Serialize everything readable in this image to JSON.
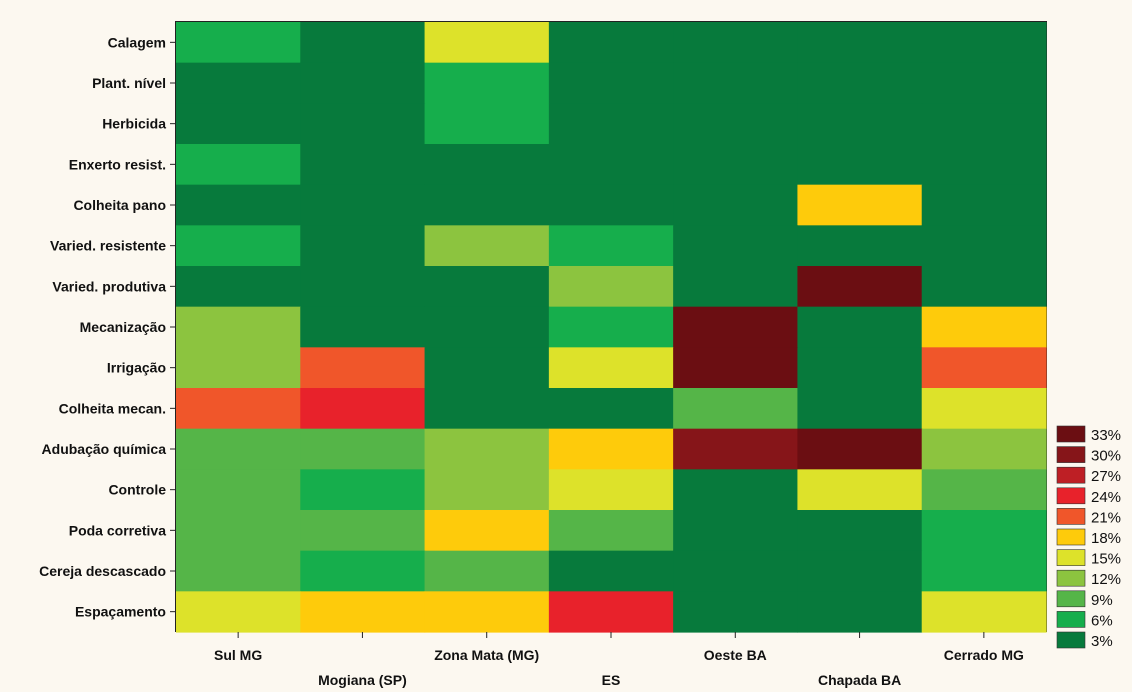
{
  "chart_data": {
    "type": "heatmap",
    "rows": [
      "Calagem",
      "Plant. nível",
      "Herbicida",
      "Enxerto resist.",
      "Colheita pano",
      "Varied. resistente",
      "Varied. produtiva",
      "Mecanização",
      "Irrigação",
      "Colheita mecan.",
      "Adubação química",
      "Controle",
      "Poda corretiva",
      "Cereja descascado",
      "Espaçamento"
    ],
    "columns": [
      "Sul MG",
      "Mogiana (SP)",
      "Zona Mata (MG)",
      "ES",
      "Oeste BA",
      "Chapada BA",
      "Cerrado MG"
    ],
    "values": [
      [
        6,
        3,
        15,
        3,
        3,
        3,
        3
      ],
      [
        3,
        3,
        6,
        3,
        3,
        3,
        3
      ],
      [
        3,
        3,
        6,
        3,
        3,
        3,
        3
      ],
      [
        6,
        3,
        3,
        3,
        3,
        3,
        3
      ],
      [
        3,
        3,
        3,
        3,
        3,
        18,
        3
      ],
      [
        6,
        3,
        12,
        6,
        3,
        3,
        3
      ],
      [
        3,
        3,
        3,
        12,
        3,
        33,
        3
      ],
      [
        12,
        3,
        3,
        6,
        33,
        3,
        18
      ],
      [
        12,
        21,
        3,
        15,
        33,
        3,
        21
      ],
      [
        21,
        24,
        3,
        3,
        9,
        3,
        15
      ],
      [
        9,
        9,
        12,
        18,
        30,
        33,
        12
      ],
      [
        9,
        6,
        12,
        15,
        3,
        15,
        9
      ],
      [
        9,
        9,
        18,
        9,
        3,
        3,
        6
      ],
      [
        9,
        6,
        9,
        3,
        3,
        3,
        6
      ],
      [
        15,
        18,
        18,
        24,
        3,
        3,
        15
      ]
    ],
    "legend": {
      "labels": [
        "33%",
        "30%",
        "27%",
        "24%",
        "21%",
        "18%",
        "15%",
        "12%",
        "9%",
        "6%",
        "3%"
      ],
      "levels": [
        33,
        30,
        27,
        24,
        21,
        18,
        15,
        12,
        9,
        6,
        3
      ],
      "colors": [
        "#6b0e12",
        "#861519",
        "#be1f25",
        "#e8222b",
        "#f0562a",
        "#fecb0b",
        "#dde22a",
        "#8cc43f",
        "#55b548",
        "#16ae4c",
        "#077a3c"
      ],
      "position": "right-bottom"
    }
  }
}
